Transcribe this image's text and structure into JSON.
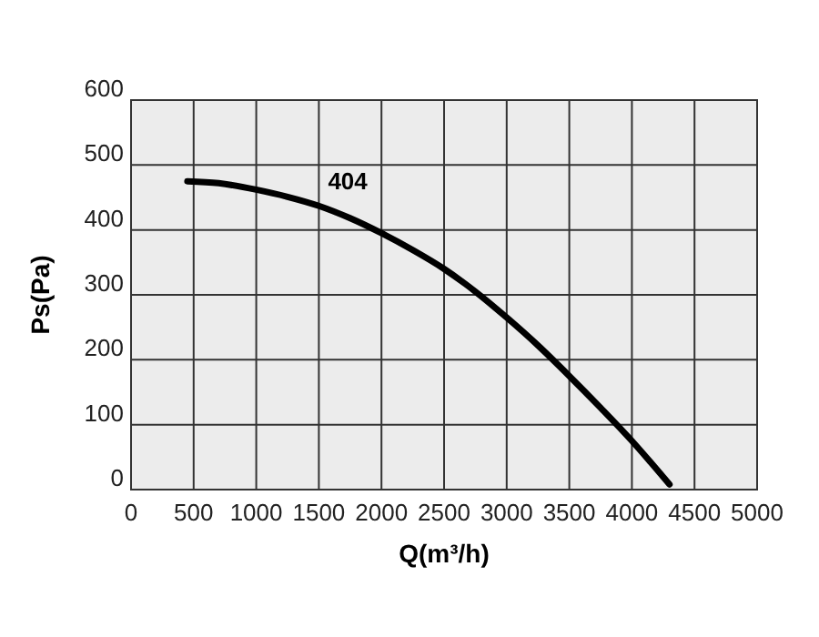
{
  "chart_data": {
    "type": "line",
    "xlabel": "Q(m³/h)",
    "ylabel": "Ps(Pa)",
    "x": [
      450,
      700,
      1000,
      1250,
      1500,
      1750,
      2000,
      2250,
      2500,
      2750,
      3000,
      3250,
      3500,
      3750,
      4000,
      4150,
      4300
    ],
    "series": [
      {
        "name": "404",
        "color": "#000000",
        "values": [
          475,
          472,
          462,
          451,
          437,
          418,
          395,
          369,
          340,
          305,
          265,
          222,
          175,
          126,
          75,
          42,
          8
        ]
      }
    ],
    "xlim": [
      0,
      5000
    ],
    "ylim": [
      0,
      600
    ],
    "xticks": [
      0,
      500,
      1000,
      1500,
      2000,
      2500,
      3000,
      3500,
      4000,
      4500,
      5000
    ],
    "yticks": [
      0,
      100,
      200,
      300,
      400,
      500,
      600
    ],
    "grid": true,
    "marker": "none",
    "line_style": "solid"
  }
}
